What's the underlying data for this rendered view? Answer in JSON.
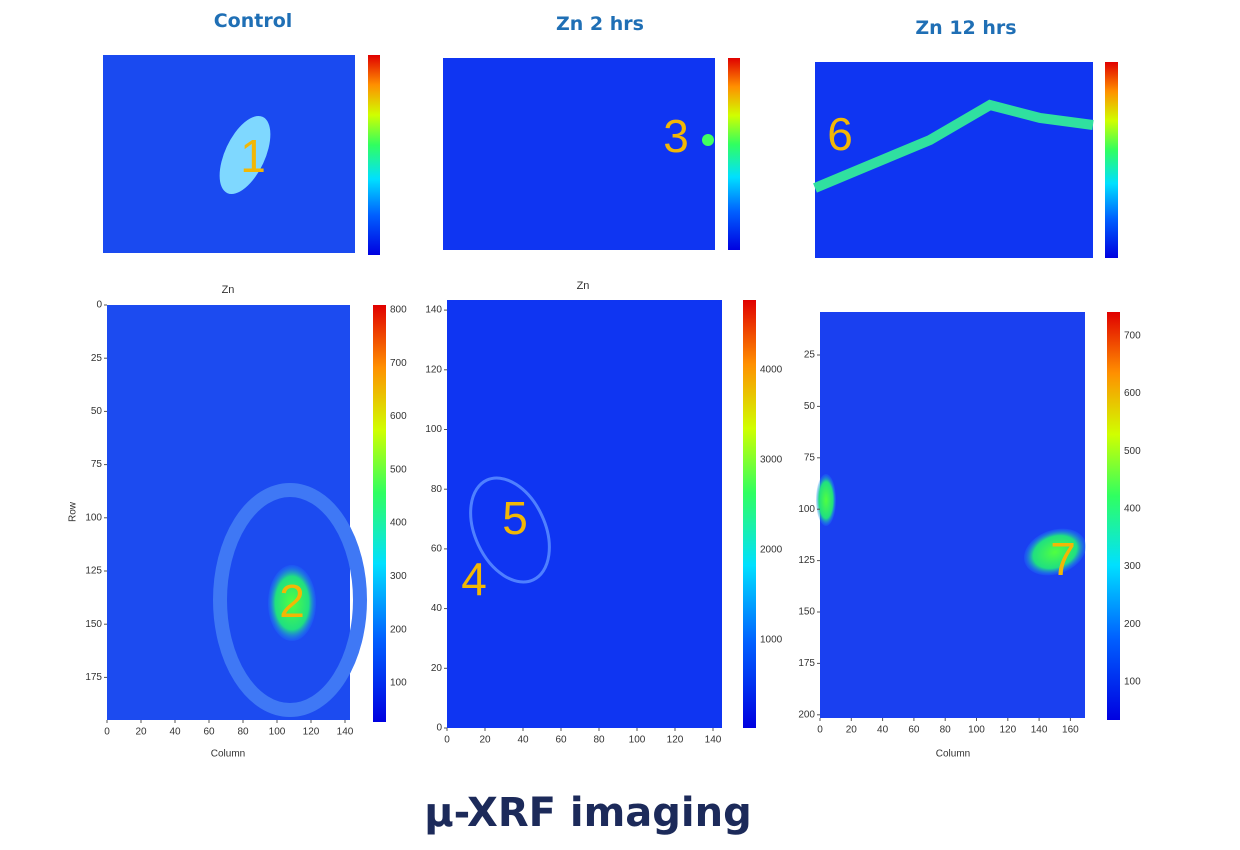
{
  "header": {
    "titles": [
      "Control",
      "Zn 2 hrs",
      "Zn 12 hrs"
    ]
  },
  "panels": [
    {
      "labels": [
        "1"
      ]
    },
    {
      "labels": [
        "3"
      ]
    },
    {
      "labels": [
        "6"
      ]
    },
    {
      "subtitle": "Zn",
      "labels": [
        "2"
      ],
      "yticks": [
        0,
        25,
        50,
        75,
        100,
        125,
        150,
        175
      ],
      "xticks": [
        0,
        20,
        40,
        60,
        80,
        100,
        120,
        140
      ],
      "xlabel": "Column",
      "ylabel": "Row",
      "cticks": [
        100,
        200,
        300,
        400,
        500,
        600,
        700,
        800
      ]
    },
    {
      "subtitle": "Zn",
      "labels": [
        "5",
        "4"
      ],
      "yticks": [
        0,
        20,
        40,
        60,
        80,
        100,
        120,
        140
      ],
      "xticks": [
        0,
        20,
        40,
        60,
        80,
        100,
        120,
        140
      ],
      "cticks": [
        1000,
        2000,
        3000,
        4000
      ]
    },
    {
      "labels": [
        "7"
      ],
      "yticks": [
        25,
        50,
        75,
        100,
        125,
        150,
        175,
        200
      ],
      "xticks": [
        0,
        20,
        40,
        60,
        80,
        100,
        120,
        140,
        160
      ],
      "xlabel": "Column",
      "cticks": [
        100,
        200,
        300,
        400,
        500,
        600,
        700
      ]
    }
  ],
  "footer": {
    "title": "µ-XRF imaging"
  }
}
